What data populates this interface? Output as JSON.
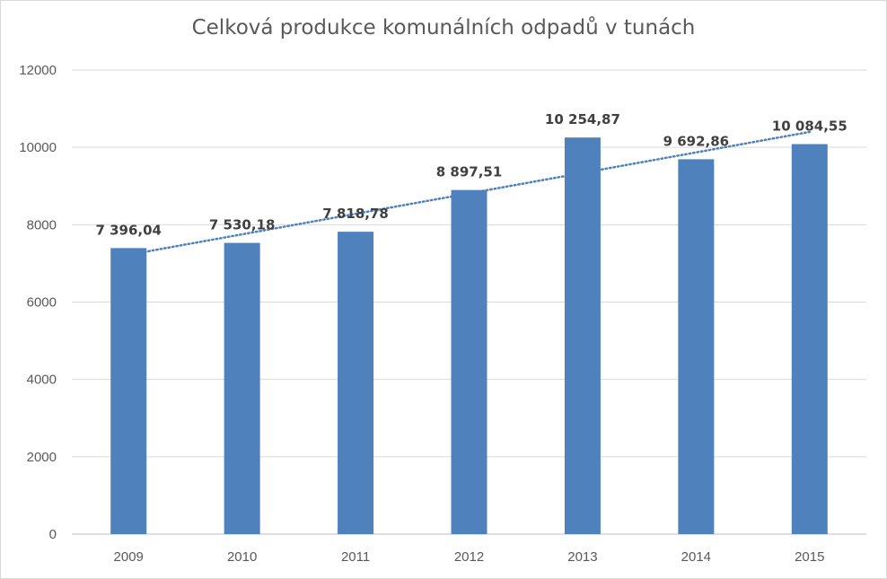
{
  "chart_data": {
    "type": "bar",
    "title": "Celková produkce komunálních odpadů v tunách",
    "xlabel": "",
    "ylabel": "",
    "categories": [
      "2009",
      "2010",
      "2011",
      "2012",
      "2013",
      "2014",
      "2015"
    ],
    "values": [
      7396.04,
      7530.18,
      7818.78,
      8897.51,
      10254.87,
      9692.86,
      10084.55
    ],
    "data_labels": [
      "7 396,04",
      "7 530,18",
      "7 818,78",
      "8 897,51",
      "10 254,87",
      "9 692,86",
      "10 084,55"
    ],
    "ylim": [
      0,
      12000
    ],
    "yticks": [
      "0",
      "2000",
      "4000",
      "6000",
      "8000",
      "10000",
      "12000"
    ],
    "trendline": "linear",
    "grid": true,
    "colors": {
      "bar": "#4f81bd",
      "trendline": "#4f81bd",
      "grid": "#d9d9d9",
      "axis": "#bfbfbf"
    }
  }
}
